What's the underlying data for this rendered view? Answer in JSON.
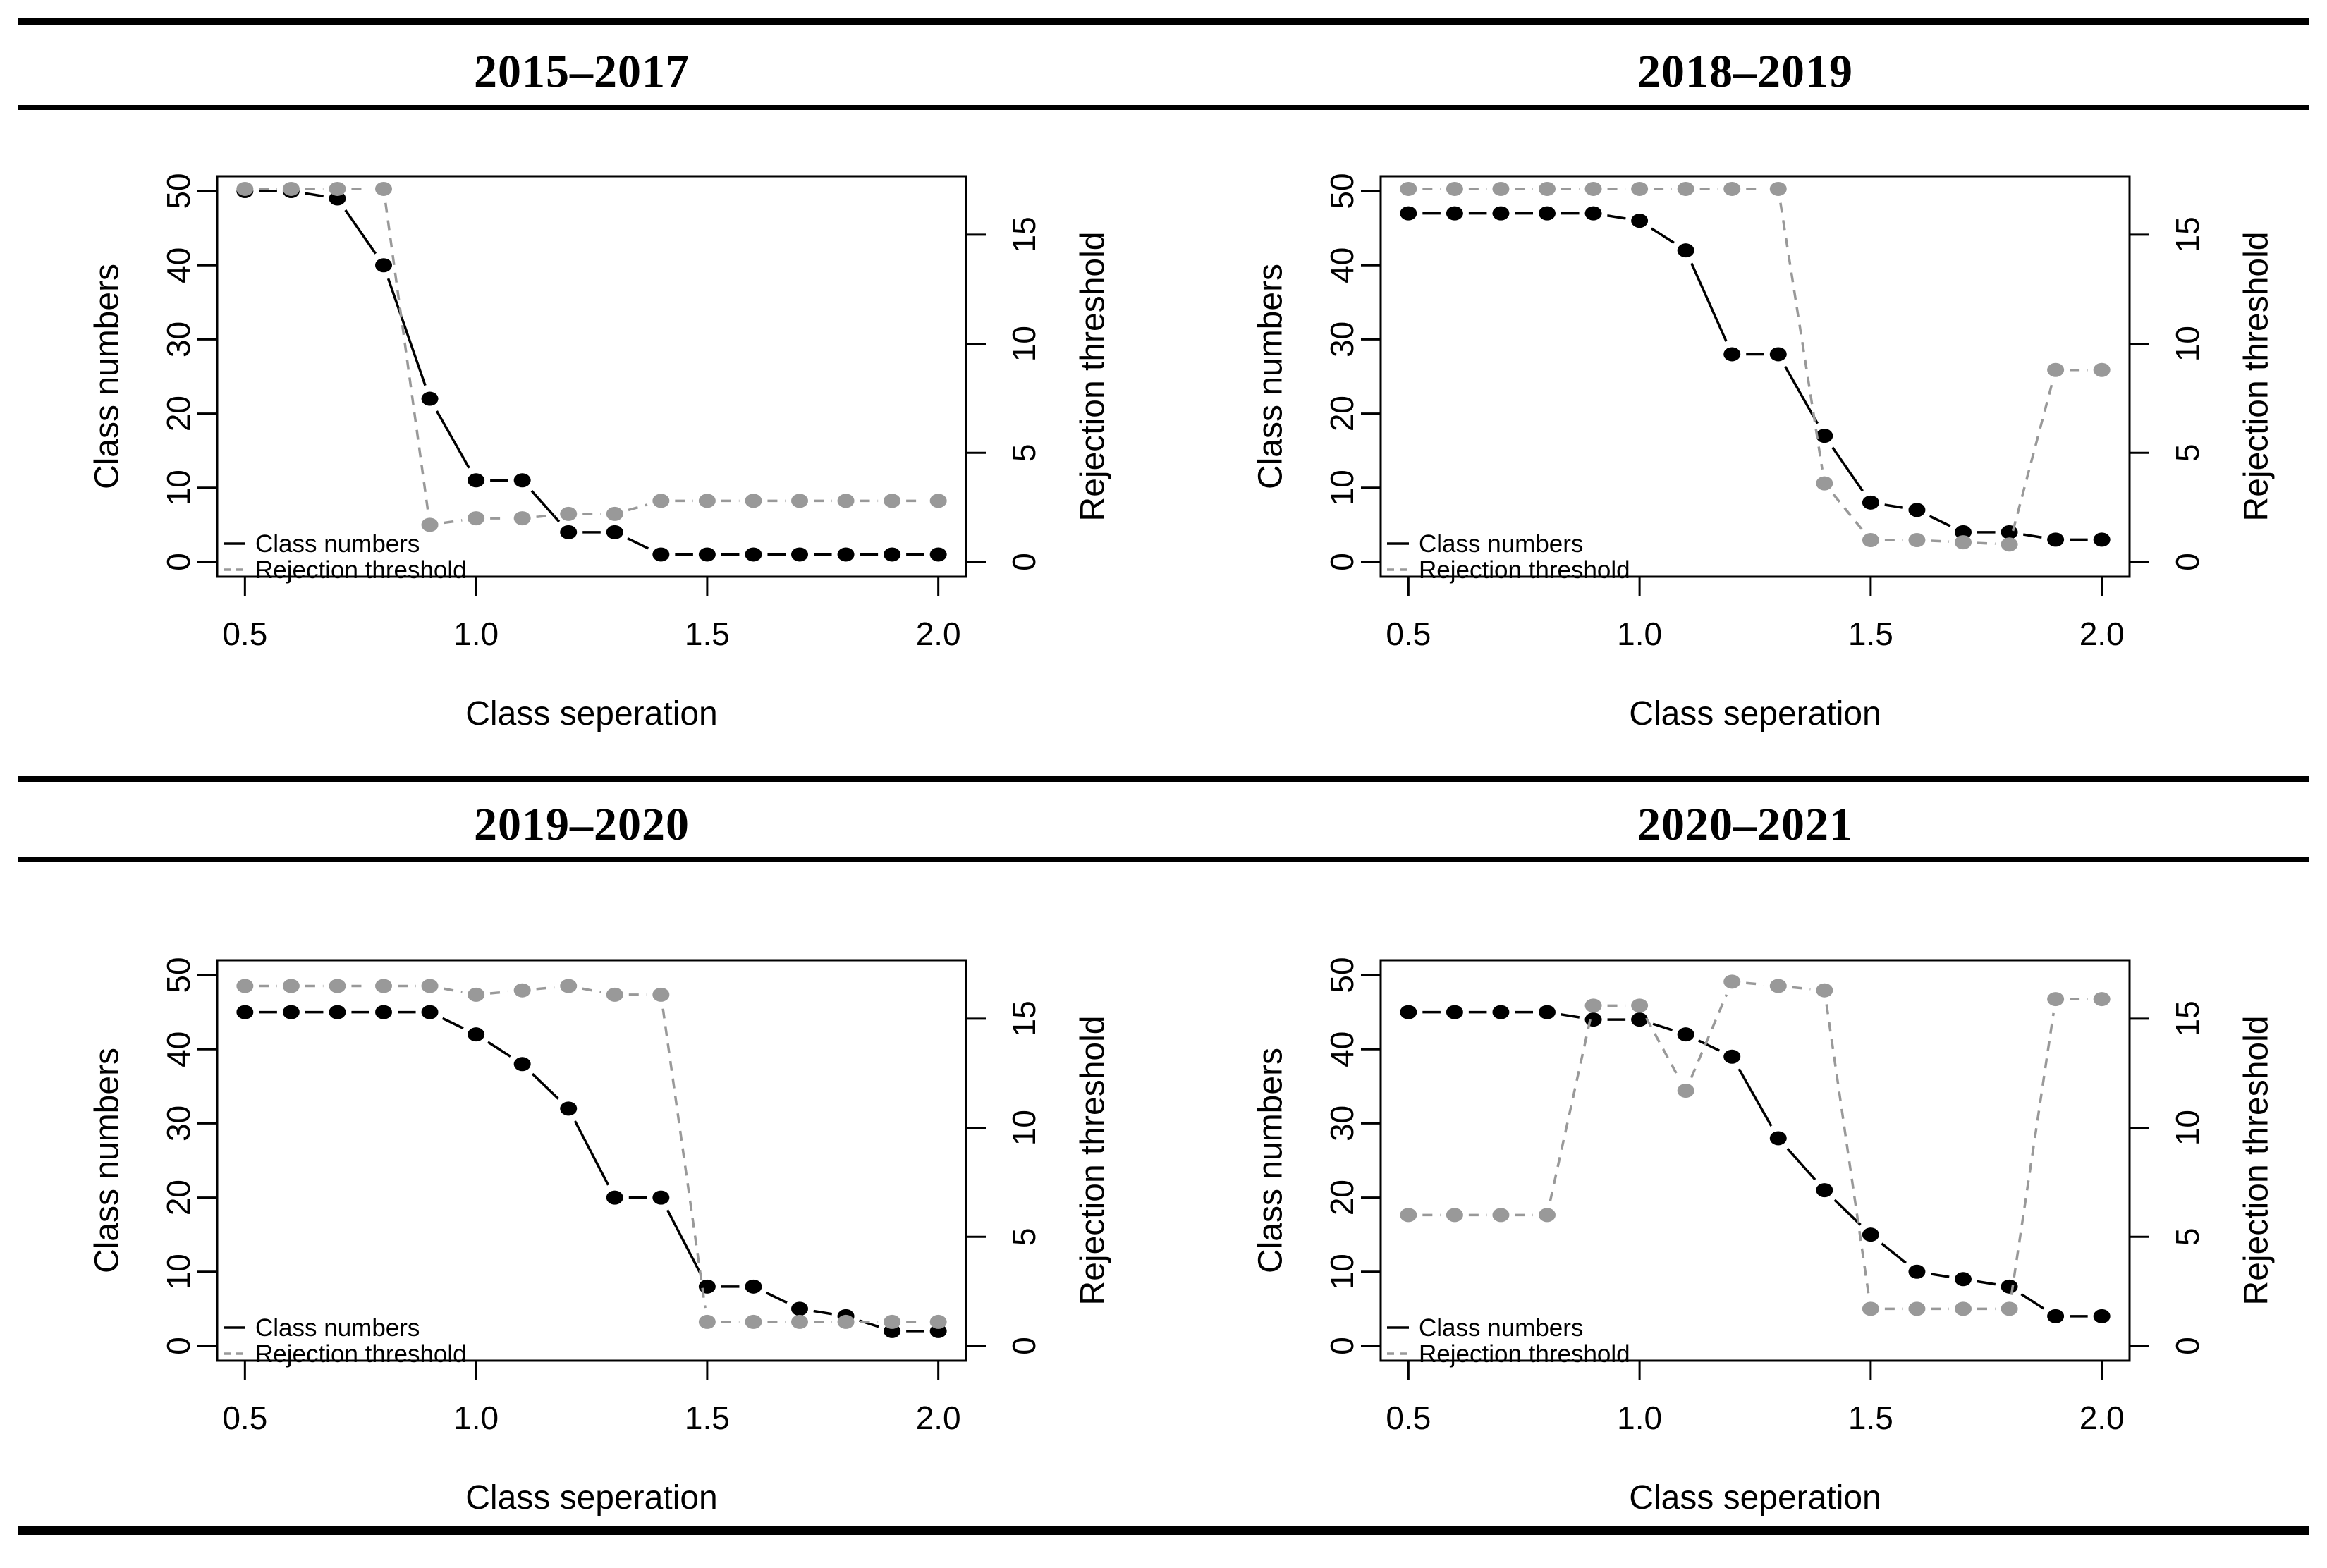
{
  "figure": {
    "background": "#ffffff",
    "colors": {
      "class_numbers": "#000000",
      "rejection_threshold": "#999999",
      "rule": "#000000"
    }
  },
  "axes": {
    "x_label": "Class seperation",
    "y_left_label": "Class numbers",
    "y_right_label": "Rejection threshold",
    "x_ticks": [
      "0.5",
      "1.0",
      "1.5",
      "2.0"
    ],
    "x_tick_values": [
      0.5,
      1.0,
      1.5,
      2.0
    ],
    "y_left_ticks": [
      0,
      10,
      20,
      30,
      40,
      50
    ],
    "y_right_ticks": [
      0,
      5,
      10,
      15
    ],
    "x_range": [
      0.5,
      2.0
    ],
    "y_left_range": [
      0,
      50
    ],
    "y_right_range": [
      0,
      17
    ]
  },
  "legend": {
    "entries": [
      {
        "label": "Class numbers",
        "series": "class_numbers",
        "line": "solid"
      },
      {
        "label": "Rejection threshold",
        "series": "rejection_threshold",
        "line": "dashed"
      }
    ]
  },
  "chart_data": [
    {
      "type": "line",
      "title": "2015–2017",
      "xlabel": "Class seperation",
      "ylabel_left": "Class numbers",
      "ylabel_right": "Rejection threshold",
      "xlim": [
        0.5,
        2.0
      ],
      "ylim_left": [
        0,
        50
      ],
      "ylim_right": [
        0,
        17
      ],
      "x": [
        0.5,
        0.6,
        0.7,
        0.8,
        0.9,
        1.0,
        1.1,
        1.2,
        1.3,
        1.4,
        1.5,
        1.6,
        1.7,
        1.8,
        1.9,
        2.0
      ],
      "series": [
        {
          "name": "Class numbers",
          "axis": "left",
          "color": "class_numbers",
          "line": "solid",
          "values": [
            50,
            50,
            49,
            40,
            22,
            11,
            11,
            4,
            4,
            1,
            1,
            1,
            1,
            1,
            1,
            1
          ]
        },
        {
          "name": "Rejection threshold",
          "axis": "right",
          "color": "rejection_threshold",
          "line": "dashed",
          "values": [
            17.1,
            17.1,
            17.1,
            17.1,
            1.7,
            2.0,
            2.0,
            2.2,
            2.2,
            2.8,
            2.8,
            2.8,
            2.8,
            2.8,
            2.8,
            2.8
          ]
        }
      ]
    },
    {
      "type": "line",
      "title": "2018–2019",
      "xlabel": "Class seperation",
      "ylabel_left": "Class numbers",
      "ylabel_right": "Rejection threshold",
      "xlim": [
        0.5,
        2.0
      ],
      "ylim_left": [
        0,
        50
      ],
      "ylim_right": [
        0,
        17
      ],
      "x": [
        0.5,
        0.6,
        0.7,
        0.8,
        0.9,
        1.0,
        1.1,
        1.2,
        1.3,
        1.4,
        1.5,
        1.6,
        1.7,
        1.8,
        1.9,
        2.0
      ],
      "series": [
        {
          "name": "Class numbers",
          "axis": "left",
          "color": "class_numbers",
          "line": "solid",
          "values": [
            47,
            47,
            47,
            47,
            47,
            46,
            42,
            28,
            28,
            17,
            8,
            7,
            4,
            4,
            3,
            3
          ]
        },
        {
          "name": "Rejection threshold",
          "axis": "right",
          "color": "rejection_threshold",
          "line": "dashed",
          "values": [
            17.1,
            17.1,
            17.1,
            17.1,
            17.1,
            17.1,
            17.1,
            17.1,
            17.1,
            3.6,
            1.0,
            1.0,
            0.9,
            0.8,
            8.8,
            8.8
          ]
        }
      ]
    },
    {
      "type": "line",
      "title": "2019–2020",
      "xlabel": "Class seperation",
      "ylabel_left": "Class numbers",
      "ylabel_right": "Rejection threshold",
      "xlim": [
        0.5,
        2.0
      ],
      "ylim_left": [
        0,
        50
      ],
      "ylim_right": [
        0,
        17
      ],
      "x": [
        0.5,
        0.6,
        0.7,
        0.8,
        0.9,
        1.0,
        1.1,
        1.2,
        1.3,
        1.4,
        1.5,
        1.6,
        1.7,
        1.8,
        1.9,
        2.0
      ],
      "series": [
        {
          "name": "Class numbers",
          "axis": "left",
          "color": "class_numbers",
          "line": "solid",
          "values": [
            45,
            45,
            45,
            45,
            45,
            42,
            38,
            32,
            20,
            20,
            8,
            8,
            5,
            4,
            2,
            2
          ]
        },
        {
          "name": "Rejection threshold",
          "axis": "right",
          "color": "rejection_threshold",
          "line": "dashed",
          "values": [
            16.5,
            16.5,
            16.5,
            16.5,
            16.5,
            16.1,
            16.3,
            16.5,
            16.1,
            16.1,
            1.1,
            1.1,
            1.1,
            1.1,
            1.1,
            1.1
          ]
        }
      ]
    },
    {
      "type": "line",
      "title": "2020–2021",
      "xlabel": "Class seperation",
      "ylabel_left": "Class numbers",
      "ylabel_right": "Rejection threshold",
      "xlim": [
        0.5,
        2.0
      ],
      "ylim_left": [
        0,
        50
      ],
      "ylim_right": [
        0,
        17
      ],
      "x": [
        0.5,
        0.6,
        0.7,
        0.8,
        0.9,
        1.0,
        1.1,
        1.2,
        1.3,
        1.4,
        1.5,
        1.6,
        1.7,
        1.8,
        1.9,
        2.0
      ],
      "series": [
        {
          "name": "Class numbers",
          "axis": "left",
          "color": "class_numbers",
          "line": "solid",
          "values": [
            45,
            45,
            45,
            45,
            44,
            44,
            42,
            39,
            28,
            21,
            15,
            10,
            9,
            8,
            4,
            4
          ]
        },
        {
          "name": "Rejection threshold",
          "axis": "right",
          "color": "rejection_threshold",
          "line": "dashed",
          "values": [
            6.0,
            6.0,
            6.0,
            6.0,
            15.6,
            15.6,
            11.7,
            16.7,
            16.5,
            16.3,
            1.7,
            1.7,
            1.7,
            1.7,
            15.9,
            15.9
          ]
        }
      ]
    }
  ]
}
